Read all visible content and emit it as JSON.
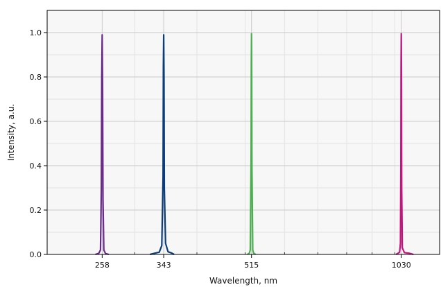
{
  "chart_data": {
    "type": "line",
    "title": "",
    "xlabel": "Wavelength, nm",
    "ylabel": "Intensity, a.u.",
    "x_scale": "log",
    "xlim": [
      200,
      1230
    ],
    "ylim": [
      0,
      1.1
    ],
    "x_tick_labels": [
      "258",
      "343",
      "515",
      "1030"
    ],
    "y_tick_labels": [
      "0.0",
      "0.2",
      "0.4",
      "0.6",
      "0.8",
      "1.0"
    ],
    "grid": true,
    "series": [
      {
        "peak_nm": 258,
        "peak_intensity": 0.99,
        "color": "#6a2a8c",
        "x": [
          250,
          254,
          256,
          257,
          257.5,
          258,
          258.5,
          259,
          260,
          262,
          266
        ],
        "y": [
          0.0,
          0.005,
          0.02,
          0.3,
          0.8,
          0.99,
          0.75,
          0.25,
          0.02,
          0.004,
          0.0
        ]
      },
      {
        "peak_nm": 343,
        "peak_intensity": 0.99,
        "color": "#0b3d7a",
        "x": [
          322,
          330,
          336,
          340,
          342,
          342.5,
          343,
          343.5,
          344,
          346,
          350,
          356,
          360
        ],
        "y": [
          0.0,
          0.006,
          0.01,
          0.04,
          0.35,
          0.85,
          0.99,
          0.8,
          0.3,
          0.05,
          0.012,
          0.006,
          0.0
        ]
      },
      {
        "peak_nm": 515,
        "peak_intensity": 0.995,
        "color": "#4caf50",
        "x": [
          505,
          510,
          512,
          514,
          514.5,
          515,
          515.5,
          516,
          518,
          520,
          525
        ],
        "y": [
          0.0,
          0.006,
          0.02,
          0.45,
          0.85,
          0.995,
          0.8,
          0.4,
          0.02,
          0.006,
          0.0
        ]
      },
      {
        "peak_nm": 1030,
        "peak_intensity": 0.995,
        "color": "#c4147e",
        "x": [
          1005,
          1015,
          1022,
          1026,
          1028,
          1029,
          1030,
          1031,
          1032,
          1035,
          1045,
          1070,
          1090
        ],
        "y": [
          0.0,
          0.005,
          0.01,
          0.05,
          0.4,
          0.85,
          0.995,
          0.8,
          0.3,
          0.03,
          0.008,
          0.005,
          0.0
        ]
      }
    ]
  }
}
